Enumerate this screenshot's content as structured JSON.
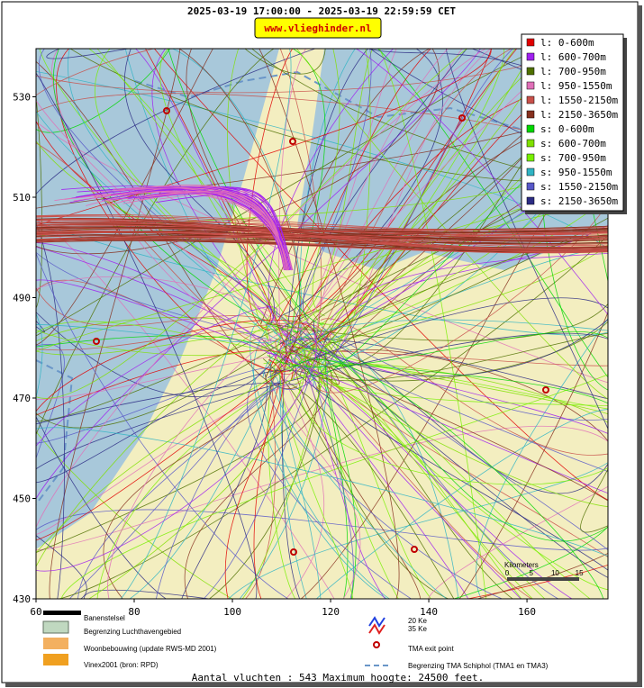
{
  "header": {
    "title": "2025-03-19 17:00:00 - 2025-03-19 22:59:59 CET",
    "site": "www.vlieghinder.nl"
  },
  "map": {
    "xlim": [
      60,
      176.5
    ],
    "ylim": [
      430,
      539.6
    ],
    "xticks": [
      60,
      80,
      100,
      120,
      140,
      160
    ],
    "yticks": [
      430,
      450,
      470,
      490,
      510,
      530
    ]
  },
  "legend": [
    {
      "label": "l: 0-600m",
      "color": "#e00000"
    },
    {
      "label": "l: 600-700m",
      "color": "#a020f0"
    },
    {
      "label": "l: 700-950m",
      "color": "#4f7000"
    },
    {
      "label": "l: 950-1550m",
      "color": "#e070b8"
    },
    {
      "label": "l: 1550-2150m",
      "color": "#c8504a"
    },
    {
      "label": "l: 2150-3650m",
      "color": "#86301e"
    },
    {
      "label": "s: 0-600m",
      "color": "#00d800"
    },
    {
      "label": "s: 600-700m",
      "color": "#80e000"
    },
    {
      "label": "s: 700-950m",
      "color": "#78f000"
    },
    {
      "label": "s: 950-1550m",
      "color": "#30b4c4"
    },
    {
      "label": "s: 1550-2150m",
      "color": "#5858c8"
    },
    {
      "label": "s: 2150-3650m",
      "color": "#2c2c84"
    }
  ],
  "scale": {
    "title": "Kilometers",
    "ticks": [
      "0",
      "5",
      "10",
      "15"
    ]
  },
  "bottom_legend": {
    "runways": "Banenstelsel",
    "airport": "Begrenzing Luchthavengebied",
    "housing": "Woonbebouwing (update RWS-MD 2001)",
    "vinex": "Vinex2001 (bron: RPD)",
    "ke20": "20 Ke",
    "ke35": "35 Ke",
    "tma_exit": "TMA exit point",
    "tma_border": "Begrenzing TMA Schiphol  (TMA1 en TMA3)"
  },
  "footer": "Aantal vluchten : 543 Maximum hoogte: 24500 feet."
}
